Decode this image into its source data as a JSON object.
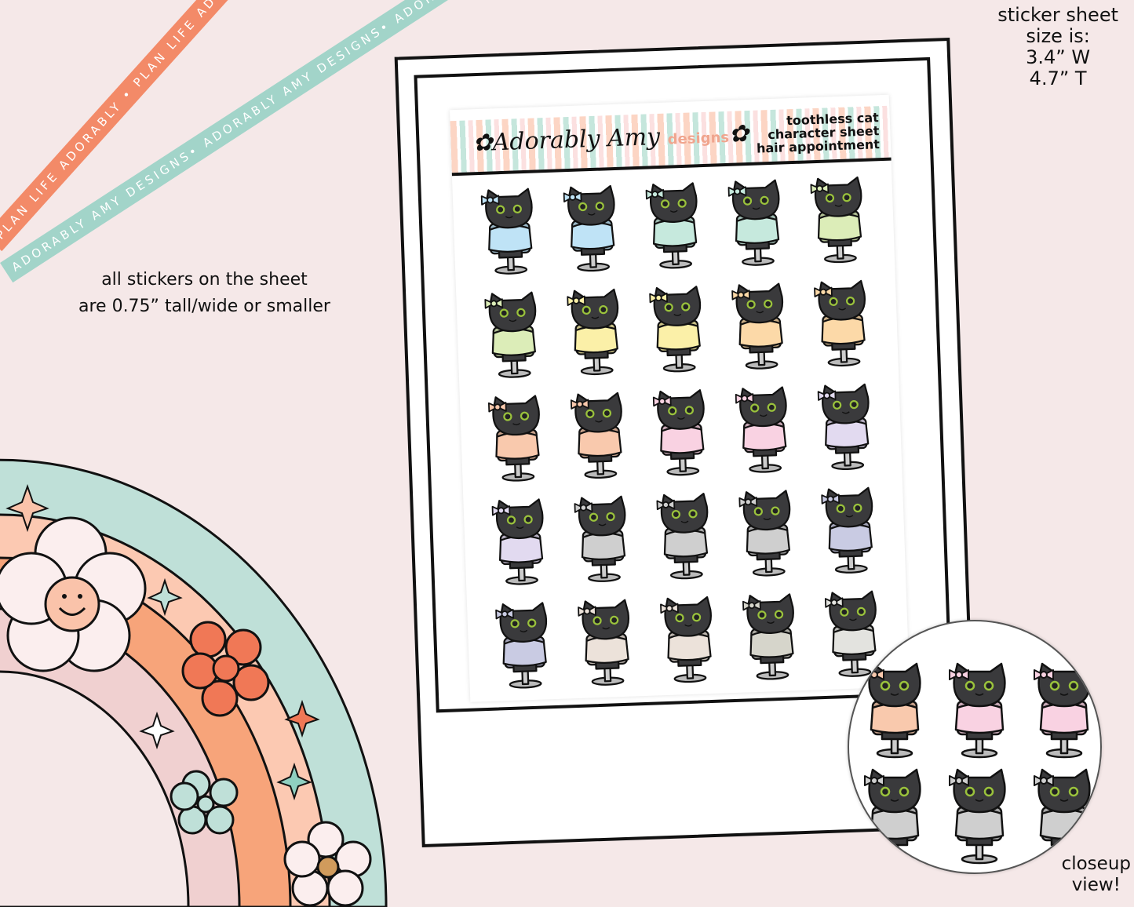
{
  "ribbons": {
    "orange": "PLAN LIFE ADORABLY • PLAN LIFE ADORABLY • PLAN LIFE ADORABLY",
    "teal": "ADORABLY AMY DESIGNS• ADORABLY AMY DESIGNS• ADORABLY AMY DESIGNS"
  },
  "size_info": {
    "line1": "sticker sheet",
    "line2": "size is:",
    "width": "3.4” W",
    "height": "4.7” T"
  },
  "sticker_info": {
    "line1": "all stickers on the sheet",
    "line2": "are 0.75” tall/wide or smaller"
  },
  "closeup_label": {
    "line1": "closeup",
    "line2": "view!"
  },
  "sheet": {
    "logo_script": "Adorably Amy",
    "logo_word": "designs",
    "title_line1": "toothless cat",
    "title_line2": "character sheet",
    "title_line3": "hair appointment"
  },
  "sticker_colors": [
    "#bfe3f6",
    "#bfe3f6",
    "#c6e9dd",
    "#c6e9dd",
    "#dcedb8",
    "#dcedb8",
    "#fbf0a8",
    "#fbf0a8",
    "#fcd9a8",
    "#fcd9a8",
    "#f9c9ad",
    "#f9c9ad",
    "#f9d2e2",
    "#f9d2e2",
    "#e2daf0",
    "#e2daf0",
    "#cfcfcf",
    "#cfcfcf",
    "#cfcfcf",
    "#c9cbe3",
    "#c9cbe3",
    "#ece2da",
    "#ece2da",
    "#d6d5cb",
    "#e3e3df"
  ],
  "closeup_colors": [
    "#f9c9ad",
    "#f9d2e2",
    "#f9d2e2",
    "#cfcfcf",
    "#cfcfcf",
    "#cfcfcf"
  ],
  "palette": {
    "background": "#f5e8e8",
    "orange": "#f38a68",
    "teal": "#a2d4c9",
    "cat": "#3a3a3c"
  }
}
